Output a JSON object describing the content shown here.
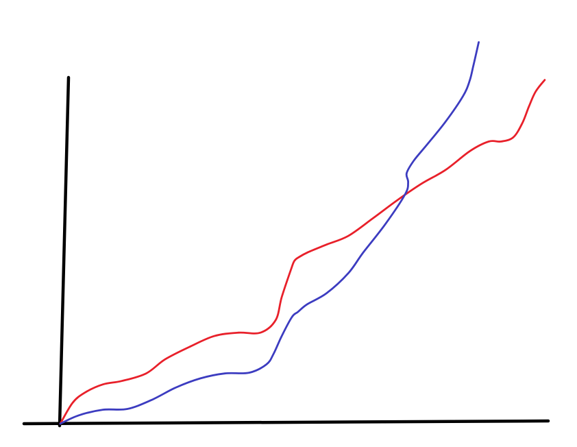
{
  "chart_data": {
    "type": "line",
    "title": "",
    "xlabel": "",
    "ylabel": "",
    "grid": false,
    "legend": "none",
    "xlim": [
      0,
      100
    ],
    "ylim": [
      0,
      100
    ],
    "axis_color": "#000000",
    "series": [
      {
        "name": "red-line",
        "color": "#e8202a",
        "x": [
          0,
          2.4,
          4.8,
          8.4,
          12.1,
          16.9,
          20.6,
          25.4,
          30.3,
          35.1,
          39.4,
          42.4,
          43.6,
          45.4,
          46.1,
          47.0,
          48.8,
          52.4,
          56.7,
          61.5,
          66.3,
          71.1,
          75.9,
          80.7,
          84.4,
          86.8,
          89.2,
          91.0,
          92.3,
          93.6,
          95.4
        ],
        "y": [
          0,
          5.5,
          8.2,
          10.4,
          11.3,
          13.3,
          17.0,
          20.3,
          23.2,
          24.1,
          24.1,
          27.4,
          33.5,
          40.7,
          43.1,
          44.1,
          45.4,
          47.4,
          49.7,
          54.3,
          59.1,
          63.5,
          67.2,
          72.2,
          74.7,
          74.7,
          75.8,
          79.6,
          84.0,
          87.9,
          91.0
        ]
      },
      {
        "name": "blue-line",
        "color": "#3c3cc0",
        "x": [
          0,
          3.6,
          8.4,
          13.2,
          18.0,
          22.8,
          27.6,
          32.4,
          37.2,
          40.6,
          42.0,
          43.6,
          45.6,
          46.8,
          48.6,
          52.4,
          56.7,
          59.6,
          64.0,
          67.9,
          68.5,
          68.2,
          69.6,
          72.3,
          75.9,
          79.3,
          80.6,
          81.3,
          82.4
        ],
        "y": [
          0,
          2.2,
          3.7,
          3.9,
          6.3,
          9.6,
          12.0,
          13.3,
          13.5,
          15.7,
          18.5,
          23.2,
          28.2,
          29.6,
          31.6,
          34.5,
          39.8,
          45.2,
          52.8,
          60.7,
          63.9,
          66.3,
          69.6,
          74.0,
          80.0,
          86.7,
          90.7,
          94.5,
          101.0
        ]
      }
    ]
  }
}
